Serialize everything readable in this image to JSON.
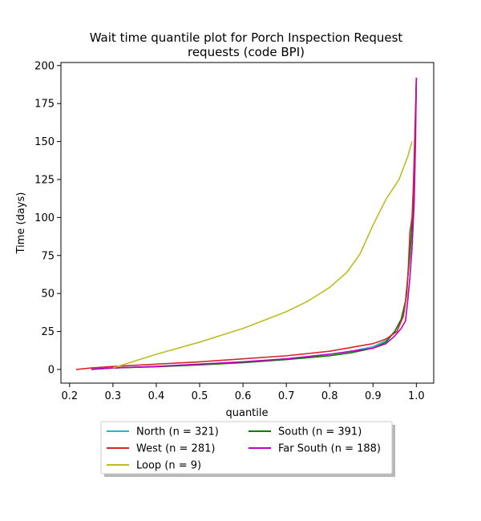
{
  "chart_data": {
    "type": "line",
    "title_line1": "Wait time quantile plot for Porch Inspection Request",
    "title_line2": "requests (code BPI)",
    "xlabel": "quantile",
    "ylabel": "Time (days)",
    "xlim": [
      0.18,
      1.04
    ],
    "ylim": [
      -9,
      202
    ],
    "xticks": [
      0.2,
      0.3,
      0.4,
      0.5,
      0.6,
      0.7,
      0.8,
      0.9,
      1.0
    ],
    "xtick_labels": [
      "0.2",
      "0.3",
      "0.4",
      "0.5",
      "0.6",
      "0.7",
      "0.8",
      "0.9",
      "1.0"
    ],
    "yticks": [
      0,
      25,
      50,
      75,
      100,
      125,
      150,
      175,
      200
    ],
    "ytick_labels": [
      "0",
      "25",
      "50",
      "75",
      "100",
      "125",
      "150",
      "175",
      "200"
    ],
    "grid": false,
    "legend_position": "below",
    "series": [
      {
        "name": "North (n = 321)",
        "color": "#17becf",
        "x": [
          0.25,
          0.3,
          0.4,
          0.5,
          0.6,
          0.7,
          0.8,
          0.85,
          0.9,
          0.93,
          0.95,
          0.965,
          0.975,
          0.98,
          0.985,
          0.99,
          0.993,
          0.996,
          0.998,
          1.0
        ],
        "y": [
          0.5,
          1,
          2,
          3.5,
          5,
          7,
          10,
          12,
          15,
          19,
          25,
          33,
          45,
          60,
          75,
          95,
          110,
          130,
          165,
          192
        ]
      },
      {
        "name": "South (n = 391)",
        "color": "#008000",
        "x": [
          0.27,
          0.3,
          0.4,
          0.5,
          0.6,
          0.7,
          0.8,
          0.85,
          0.9,
          0.93,
          0.95,
          0.965,
          0.975,
          0.98,
          0.985,
          0.99,
          0.995,
          0.998,
          1.0
        ],
        "y": [
          0.5,
          1,
          1.8,
          3,
          4.5,
          6.5,
          9,
          11,
          14,
          18,
          25,
          33,
          45,
          60,
          75,
          95,
          120,
          160,
          192
        ]
      },
      {
        "name": "West (n = 281)",
        "color": "#d62728",
        "x": [
          0.215,
          0.25,
          0.3,
          0.4,
          0.5,
          0.6,
          0.7,
          0.8,
          0.85,
          0.9,
          0.93,
          0.955,
          0.97,
          0.978,
          0.982,
          0.985,
          0.99,
          0.993,
          0.995,
          0.997,
          1.0
        ],
        "y": [
          0,
          1,
          2,
          3.5,
          5,
          7,
          9,
          12,
          14.5,
          17,
          20,
          25,
          35,
          50,
          70,
          90,
          100,
          120,
          140,
          160,
          192
        ]
      },
      {
        "name": "Far South (n = 188)",
        "color": "#c000c0",
        "x": [
          0.25,
          0.3,
          0.4,
          0.5,
          0.6,
          0.7,
          0.8,
          0.85,
          0.9,
          0.93,
          0.95,
          0.965,
          0.975,
          0.98,
          0.985,
          0.99,
          0.995,
          0.998,
          1.0
        ],
        "y": [
          0,
          1,
          2,
          3.5,
          5,
          7,
          10,
          12,
          14,
          17,
          22,
          27,
          32,
          45,
          60,
          80,
          110,
          150,
          192
        ]
      },
      {
        "name": "Loop (n = 9)",
        "color": "#bcbd22",
        "x": [
          0.3,
          0.4,
          0.5,
          0.6,
          0.7,
          0.75,
          0.8,
          0.84,
          0.87,
          0.9,
          0.93,
          0.96,
          0.98,
          0.99
        ],
        "y": [
          1,
          10,
          18,
          27,
          38,
          45,
          54,
          64,
          76,
          95,
          112,
          125,
          140,
          150
        ]
      }
    ],
    "legend": [
      {
        "label": "North (n = 321)",
        "color": "#17becf"
      },
      {
        "label": "South (n = 391)",
        "color": "#008000"
      },
      {
        "label": "West (n = 281)",
        "color": "#d62728"
      },
      {
        "label": "Far South (n = 188)",
        "color": "#c000c0"
      },
      {
        "label": "Loop (n = 9)",
        "color": "#bcbd22"
      }
    ]
  }
}
